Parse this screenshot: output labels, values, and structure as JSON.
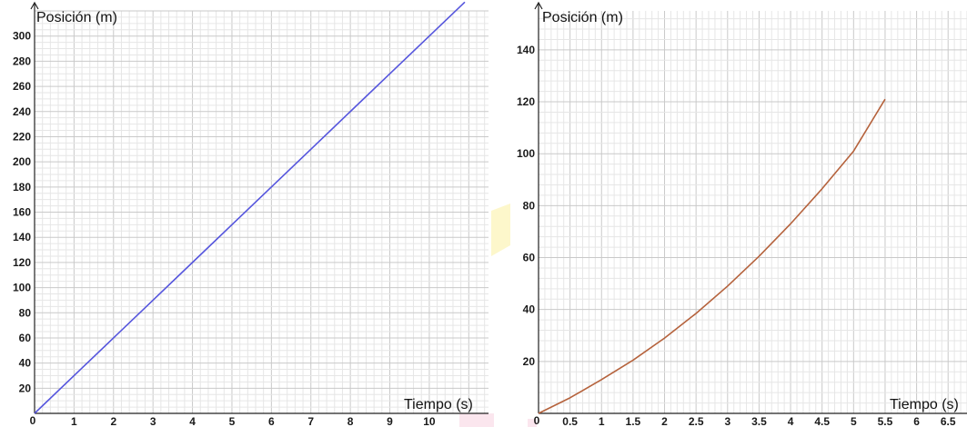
{
  "chart_data": [
    {
      "type": "line",
      "xlabel": "Tiempo (s)",
      "ylabel": "Posición (m)",
      "origin_label": "0",
      "xlim": [
        0,
        11.5
      ],
      "ylim": [
        0,
        320
      ],
      "x_ticks": [
        "1",
        "2",
        "3",
        "4",
        "5",
        "6",
        "7",
        "8",
        "9",
        "10"
      ],
      "y_ticks": [
        "20",
        "40",
        "60",
        "80",
        "100",
        "120",
        "140",
        "160",
        "180",
        "200",
        "220",
        "240",
        "260",
        "280",
        "300"
      ],
      "grid": true,
      "series": [
        {
          "color": "#5555dd",
          "x": [
            0,
            1,
            2,
            3,
            4,
            5,
            6,
            7,
            8,
            9,
            10,
            10.9
          ],
          "y": [
            0,
            30,
            60,
            90,
            120,
            150,
            180,
            210,
            240,
            270,
            300,
            327
          ]
        }
      ]
    },
    {
      "type": "line",
      "xlabel": "Tiempo (s)",
      "ylabel": "Posición (m)",
      "origin_label": "0",
      "xlim": [
        0,
        6.8
      ],
      "ylim": [
        0,
        155
      ],
      "x_ticks": [
        "0.5",
        "1",
        "1.5",
        "2",
        "2.5",
        "3",
        "3.5",
        "4",
        "4.5",
        "5",
        "5.5",
        "6",
        "6.5"
      ],
      "y_ticks": [
        "20",
        "40",
        "60",
        "80",
        "100",
        "120",
        "140"
      ],
      "grid": true,
      "series": [
        {
          "color": "#b5623c",
          "x": [
            0,
            0.5,
            1,
            1.5,
            2,
            2.5,
            3,
            3.5,
            4,
            4.5,
            5,
            5.5
          ],
          "y": [
            0,
            6,
            13,
            20.5,
            29,
            38.5,
            49,
            60.5,
            73,
            86.5,
            101,
            121
          ]
        }
      ]
    }
  ]
}
